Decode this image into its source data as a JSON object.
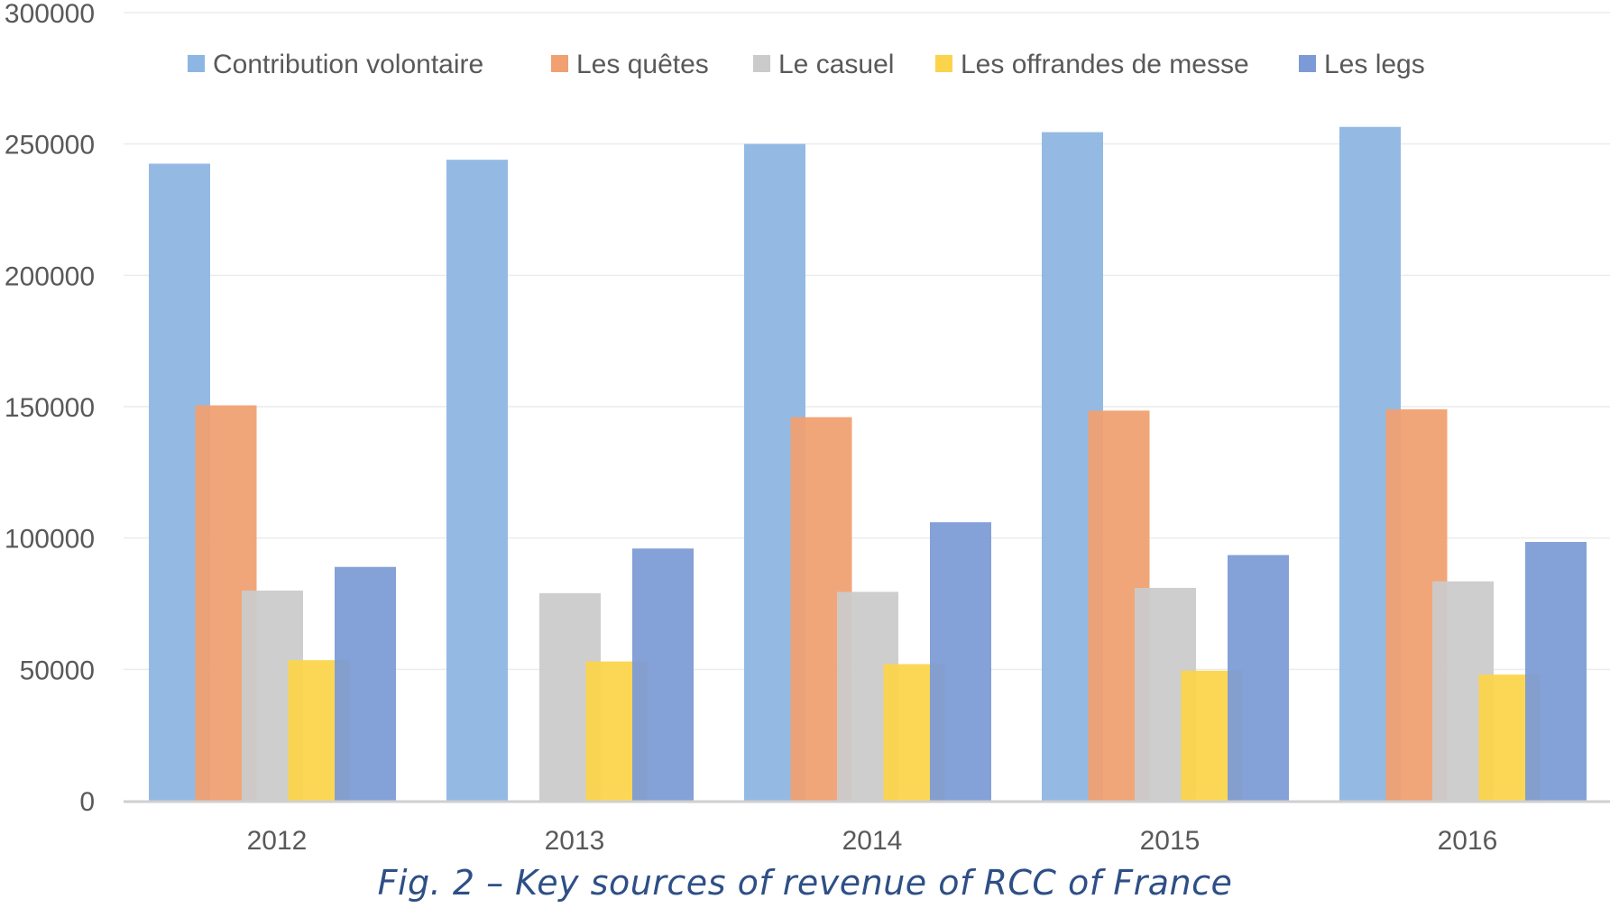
{
  "caption": "Fig. 2 – Key sources of revenue of RCC of France",
  "chart_data": {
    "type": "bar",
    "title": "",
    "xlabel": "",
    "ylabel": "",
    "ylim": [
      0,
      300000
    ],
    "yticks": [
      0,
      50000,
      100000,
      150000,
      200000,
      250000,
      300000
    ],
    "ytick_labels": [
      "0",
      "50000",
      "100000",
      "150000",
      "200000",
      "250000",
      "300000"
    ],
    "grid": true,
    "legend_position": "top",
    "categories": [
      "2012",
      "2013",
      "2014",
      "2015",
      "2016"
    ],
    "series": [
      {
        "name": "Contribution volontaire",
        "color": "#8db6e2",
        "values": [
          242500,
          244000,
          250000,
          254500,
          256500
        ]
      },
      {
        "name": "Les quêtes",
        "color": "#f0a071",
        "values": [
          150500,
          null,
          146000,
          148500,
          149000
        ]
      },
      {
        "name": "Le casuel",
        "color": "#cbcbcb",
        "values": [
          80000,
          79000,
          79500,
          81000,
          83500
        ]
      },
      {
        "name": "Les offrandes de messe",
        "color": "#fcd44b",
        "values": [
          53500,
          53000,
          52000,
          49500,
          48000
        ]
      },
      {
        "name": "Les legs",
        "color": "#7c9bd6",
        "values": [
          89000,
          96000,
          106000,
          93500,
          98500
        ]
      }
    ]
  }
}
